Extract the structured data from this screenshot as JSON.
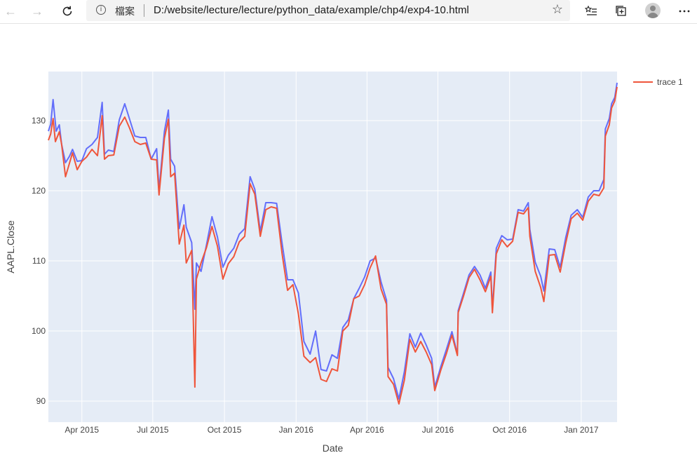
{
  "browser": {
    "back_icon": "back-arrow-icon",
    "forward_icon": "forward-arrow-icon",
    "reload_icon": "reload-icon",
    "info_icon": "info-circle-icon",
    "info_glyph": "i",
    "file_label": "檔案",
    "url": "D:/website/lecture/lecture/python_data/example/chp4/exp4-10.html",
    "favorite_icon": "star-icon",
    "favorites_bar_icon": "favorites-list-icon",
    "collections_icon": "collections-icon",
    "profile_icon": "profile-avatar-icon",
    "menu_icon": "more-dots-icon"
  },
  "chart_data": {
    "type": "line",
    "xlabel": "Date",
    "ylabel": "AAPL.Close",
    "xlim": [
      "2015-02-17",
      "2017-02-16"
    ],
    "ylim": [
      87,
      137
    ],
    "xticks": [
      {
        "date": "2015-04-01",
        "label": "Apr 2015"
      },
      {
        "date": "2015-07-01",
        "label": "Jul 2015"
      },
      {
        "date": "2015-10-01",
        "label": "Oct 2015"
      },
      {
        "date": "2016-01-01",
        "label": "Jan 2016"
      },
      {
        "date": "2016-04-01",
        "label": "Apr 2016"
      },
      {
        "date": "2016-07-01",
        "label": "Jul 2016"
      },
      {
        "date": "2016-10-01",
        "label": "Oct 2016"
      },
      {
        "date": "2017-01-01",
        "label": "Jan 2017"
      }
    ],
    "yticks": [
      90,
      100,
      110,
      120,
      130
    ],
    "grid": true,
    "legend_position": "top-right",
    "series": [
      {
        "color": "#636efa",
        "points": [
          [
            "2015-02-17",
            128.5
          ],
          [
            "2015-02-20",
            129.5
          ],
          [
            "2015-02-23",
            133.0
          ],
          [
            "2015-02-27",
            128.5
          ],
          [
            "2015-03-03",
            129.4
          ],
          [
            "2015-03-06",
            126.6
          ],
          [
            "2015-03-11",
            124.0
          ],
          [
            "2015-03-16",
            124.9
          ],
          [
            "2015-03-20",
            125.9
          ],
          [
            "2015-03-26",
            124.2
          ],
          [
            "2015-04-01",
            124.3
          ],
          [
            "2015-04-07",
            126.0
          ],
          [
            "2015-04-14",
            126.6
          ],
          [
            "2015-04-21",
            127.6
          ],
          [
            "2015-04-27",
            132.6
          ],
          [
            "2015-04-30",
            125.2
          ],
          [
            "2015-05-05",
            125.8
          ],
          [
            "2015-05-12",
            125.6
          ],
          [
            "2015-05-19",
            130.1
          ],
          [
            "2015-05-26",
            132.4
          ],
          [
            "2015-06-01",
            130.3
          ],
          [
            "2015-06-08",
            127.8
          ],
          [
            "2015-06-15",
            127.6
          ],
          [
            "2015-06-22",
            127.6
          ],
          [
            "2015-06-29",
            124.5
          ],
          [
            "2015-07-06",
            126.0
          ],
          [
            "2015-07-09",
            120.1
          ],
          [
            "2015-07-16",
            128.5
          ],
          [
            "2015-07-21",
            131.5
          ],
          [
            "2015-07-24",
            124.5
          ],
          [
            "2015-07-29",
            123.5
          ],
          [
            "2015-08-04",
            114.6
          ],
          [
            "2015-08-10",
            118.0
          ],
          [
            "2015-08-13",
            114.8
          ],
          [
            "2015-08-20",
            112.6
          ],
          [
            "2015-08-24",
            103.1
          ],
          [
            "2015-08-26",
            109.7
          ],
          [
            "2015-09-01",
            108.5
          ],
          [
            "2015-09-08",
            112.3
          ],
          [
            "2015-09-15",
            116.3
          ],
          [
            "2015-09-22",
            113.4
          ],
          [
            "2015-09-29",
            109.1
          ],
          [
            "2015-10-06",
            110.8
          ],
          [
            "2015-10-13",
            111.8
          ],
          [
            "2015-10-20",
            113.8
          ],
          [
            "2015-10-27",
            114.6
          ],
          [
            "2015-11-03",
            122.0
          ],
          [
            "2015-11-09",
            120.2
          ],
          [
            "2015-11-16",
            114.2
          ],
          [
            "2015-11-23",
            118.3
          ],
          [
            "2015-11-30",
            118.3
          ],
          [
            "2015-12-07",
            118.2
          ],
          [
            "2015-12-14",
            112.5
          ],
          [
            "2015-12-21",
            107.3
          ],
          [
            "2015-12-28",
            107.3
          ],
          [
            "2016-01-04",
            105.4
          ],
          [
            "2016-01-11",
            98.5
          ],
          [
            "2016-01-19",
            96.7
          ],
          [
            "2016-01-26",
            99.99
          ],
          [
            "2016-02-02",
            94.5
          ],
          [
            "2016-02-09",
            94.3
          ],
          [
            "2016-02-16",
            96.6
          ],
          [
            "2016-02-23",
            96.1
          ],
          [
            "2016-03-01",
            100.5
          ],
          [
            "2016-03-08",
            101.6
          ],
          [
            "2016-03-15",
            104.6
          ],
          [
            "2016-03-22",
            106.1
          ],
          [
            "2016-03-29",
            107.7
          ],
          [
            "2016-04-05",
            110.0
          ],
          [
            "2016-04-12",
            110.4
          ],
          [
            "2016-04-19",
            107.0
          ],
          [
            "2016-04-26",
            104.4
          ],
          [
            "2016-04-28",
            94.8
          ],
          [
            "2016-05-05",
            93.2
          ],
          [
            "2016-05-12",
            90.3
          ],
          [
            "2016-05-19",
            94.2
          ],
          [
            "2016-05-26",
            99.6
          ],
          [
            "2016-06-02",
            97.7
          ],
          [
            "2016-06-09",
            99.7
          ],
          [
            "2016-06-16",
            98.0
          ],
          [
            "2016-06-23",
            96.1
          ],
          [
            "2016-06-27",
            92.0
          ],
          [
            "2016-07-05",
            95.0
          ],
          [
            "2016-07-12",
            97.4
          ],
          [
            "2016-07-19",
            99.9
          ],
          [
            "2016-07-26",
            96.7
          ],
          [
            "2016-07-27",
            102.9
          ],
          [
            "2016-08-03",
            105.4
          ],
          [
            "2016-08-10",
            108.0
          ],
          [
            "2016-08-17",
            109.2
          ],
          [
            "2016-08-24",
            108.0
          ],
          [
            "2016-08-31",
            106.1
          ],
          [
            "2016-09-07",
            108.4
          ],
          [
            "2016-09-09",
            103.1
          ],
          [
            "2016-09-14",
            111.8
          ],
          [
            "2016-09-21",
            113.6
          ],
          [
            "2016-09-28",
            113.0
          ],
          [
            "2016-10-05",
            113.1
          ],
          [
            "2016-10-12",
            117.3
          ],
          [
            "2016-10-19",
            117.1
          ],
          [
            "2016-10-25",
            118.3
          ],
          [
            "2016-10-27",
            114.5
          ],
          [
            "2016-11-03",
            109.8
          ],
          [
            "2016-11-10",
            107.8
          ],
          [
            "2016-11-14",
            105.7
          ],
          [
            "2016-11-21",
            111.7
          ],
          [
            "2016-11-28",
            111.6
          ],
          [
            "2016-12-05",
            109.1
          ],
          [
            "2016-12-12",
            113.3
          ],
          [
            "2016-12-19",
            116.5
          ],
          [
            "2016-12-27",
            117.3
          ],
          [
            "2017-01-03",
            116.2
          ],
          [
            "2017-01-10",
            119.1
          ],
          [
            "2017-01-17",
            120.0
          ],
          [
            "2017-01-24",
            120.0
          ],
          [
            "2017-01-30",
            121.6
          ],
          [
            "2017-02-01",
            128.8
          ],
          [
            "2017-02-06",
            130.3
          ],
          [
            "2017-02-09",
            132.4
          ],
          [
            "2017-02-13",
            133.3
          ],
          [
            "2017-02-16",
            135.4
          ]
        ]
      },
      {
        "name": "trace 1",
        "color": "#ef553b",
        "points": [
          [
            "2015-02-17",
            127.2
          ],
          [
            "2015-02-20",
            128.1
          ],
          [
            "2015-02-23",
            130.3
          ],
          [
            "2015-02-26",
            127.0
          ],
          [
            "2015-03-03",
            128.4
          ],
          [
            "2015-03-06",
            126.6
          ],
          [
            "2015-03-11",
            122.0
          ],
          [
            "2015-03-16",
            123.9
          ],
          [
            "2015-03-20",
            125.4
          ],
          [
            "2015-03-26",
            123.0
          ],
          [
            "2015-04-01",
            124.2
          ],
          [
            "2015-04-07",
            124.8
          ],
          [
            "2015-04-14",
            125.9
          ],
          [
            "2015-04-21",
            125.0
          ],
          [
            "2015-04-27",
            130.7
          ],
          [
            "2015-04-30",
            124.5
          ],
          [
            "2015-05-05",
            125.0
          ],
          [
            "2015-05-12",
            125.1
          ],
          [
            "2015-05-19",
            129.2
          ],
          [
            "2015-05-26",
            130.5
          ],
          [
            "2015-06-01",
            129.0
          ],
          [
            "2015-06-08",
            127.0
          ],
          [
            "2015-06-15",
            126.6
          ],
          [
            "2015-06-22",
            126.8
          ],
          [
            "2015-06-29",
            124.5
          ],
          [
            "2015-07-06",
            124.4
          ],
          [
            "2015-07-09",
            119.4
          ],
          [
            "2015-07-16",
            127.5
          ],
          [
            "2015-07-21",
            130.2
          ],
          [
            "2015-07-24",
            122.0
          ],
          [
            "2015-07-29",
            122.5
          ],
          [
            "2015-08-04",
            112.4
          ],
          [
            "2015-08-10",
            115.1
          ],
          [
            "2015-08-13",
            109.7
          ],
          [
            "2015-08-20",
            111.5
          ],
          [
            "2015-08-24",
            92.0
          ],
          [
            "2015-08-26",
            107.4
          ],
          [
            "2015-09-01",
            109.7
          ],
          [
            "2015-09-08",
            111.9
          ],
          [
            "2015-09-15",
            114.9
          ],
          [
            "2015-09-22",
            112.1
          ],
          [
            "2015-09-29",
            107.4
          ],
          [
            "2015-10-06",
            109.6
          ],
          [
            "2015-10-13",
            110.6
          ],
          [
            "2015-10-20",
            112.7
          ],
          [
            "2015-10-27",
            113.5
          ],
          [
            "2015-11-03",
            121.0
          ],
          [
            "2015-11-09",
            119.5
          ],
          [
            "2015-11-16",
            113.5
          ],
          [
            "2015-11-23",
            117.3
          ],
          [
            "2015-11-30",
            117.7
          ],
          [
            "2015-12-07",
            117.5
          ],
          [
            "2015-12-14",
            111.0
          ],
          [
            "2015-12-21",
            105.8
          ],
          [
            "2015-12-28",
            106.6
          ],
          [
            "2016-01-04",
            102.4
          ],
          [
            "2016-01-11",
            96.4
          ],
          [
            "2016-01-19",
            95.5
          ],
          [
            "2016-01-26",
            96.2
          ],
          [
            "2016-02-02",
            93.1
          ],
          [
            "2016-02-09",
            92.8
          ],
          [
            "2016-02-16",
            94.6
          ],
          [
            "2016-02-23",
            94.3
          ],
          [
            "2016-03-01",
            100.0
          ],
          [
            "2016-03-08",
            100.8
          ],
          [
            "2016-03-15",
            104.6
          ],
          [
            "2016-03-22",
            105.0
          ],
          [
            "2016-03-29",
            106.6
          ],
          [
            "2016-04-05",
            109.0
          ],
          [
            "2016-04-12",
            110.7
          ],
          [
            "2016-04-19",
            106.0
          ],
          [
            "2016-04-26",
            103.8
          ],
          [
            "2016-04-28",
            93.5
          ],
          [
            "2016-05-05",
            92.4
          ],
          [
            "2016-05-12",
            89.6
          ],
          [
            "2016-05-19",
            93.0
          ],
          [
            "2016-05-26",
            98.8
          ],
          [
            "2016-06-02",
            97.0
          ],
          [
            "2016-06-09",
            98.5
          ],
          [
            "2016-06-16",
            97.0
          ],
          [
            "2016-06-23",
            95.2
          ],
          [
            "2016-06-27",
            91.5
          ],
          [
            "2016-07-05",
            94.5
          ],
          [
            "2016-07-12",
            96.8
          ],
          [
            "2016-07-19",
            99.4
          ],
          [
            "2016-07-26",
            96.5
          ],
          [
            "2016-07-27",
            102.6
          ],
          [
            "2016-08-03",
            105.0
          ],
          [
            "2016-08-10",
            107.6
          ],
          [
            "2016-08-17",
            108.8
          ],
          [
            "2016-08-24",
            107.3
          ],
          [
            "2016-08-31",
            105.6
          ],
          [
            "2016-09-07",
            107.8
          ],
          [
            "2016-09-09",
            102.6
          ],
          [
            "2016-09-14",
            111.0
          ],
          [
            "2016-09-21",
            113.0
          ],
          [
            "2016-09-28",
            112.0
          ],
          [
            "2016-10-05",
            112.8
          ],
          [
            "2016-10-12",
            116.9
          ],
          [
            "2016-10-19",
            116.7
          ],
          [
            "2016-10-25",
            117.6
          ],
          [
            "2016-10-27",
            113.5
          ],
          [
            "2016-11-03",
            108.5
          ],
          [
            "2016-11-10",
            106.2
          ],
          [
            "2016-11-14",
            104.2
          ],
          [
            "2016-11-21",
            110.8
          ],
          [
            "2016-11-28",
            110.9
          ],
          [
            "2016-12-05",
            108.4
          ],
          [
            "2016-12-12",
            112.5
          ],
          [
            "2016-12-19",
            116.0
          ],
          [
            "2016-12-27",
            116.8
          ],
          [
            "2017-01-03",
            115.8
          ],
          [
            "2017-01-10",
            118.5
          ],
          [
            "2017-01-17",
            119.5
          ],
          [
            "2017-01-24",
            119.3
          ],
          [
            "2017-01-30",
            120.4
          ],
          [
            "2017-02-01",
            127.8
          ],
          [
            "2017-02-06",
            129.4
          ],
          [
            "2017-02-09",
            131.8
          ],
          [
            "2017-02-13",
            132.8
          ],
          [
            "2017-02-16",
            134.8
          ]
        ]
      }
    ]
  }
}
